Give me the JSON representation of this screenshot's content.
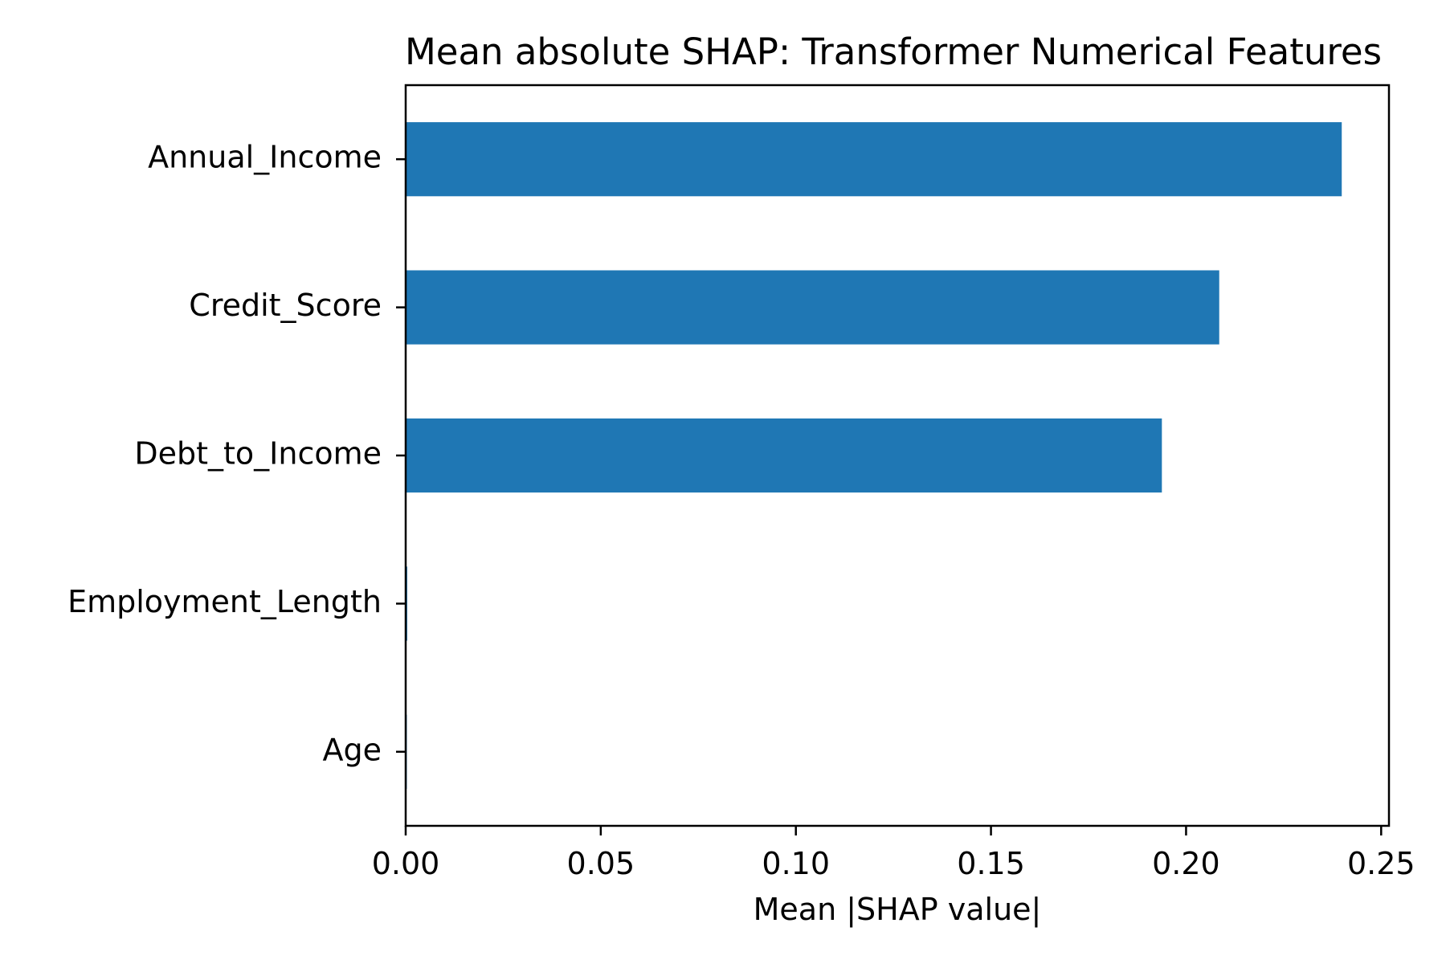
{
  "chart_data": {
    "type": "bar",
    "orientation": "horizontal",
    "title": "Mean absolute SHAP: Transformer Numerical Features",
    "xlabel": "Mean |SHAP value|",
    "ylabel": "",
    "categories": [
      "Annual_Income",
      "Credit_Score",
      "Debt_to_Income",
      "Employment_Length",
      "Age"
    ],
    "values": [
      0.2399,
      0.2085,
      0.1938,
      0.0004,
      0.0003
    ],
    "xlim": [
      0.0,
      0.252
    ],
    "xticks": [
      0.0,
      0.05,
      0.1,
      0.15,
      0.2,
      0.25
    ],
    "xtick_labels": [
      "0.00",
      "0.05",
      "0.10",
      "0.15",
      "0.20",
      "0.25"
    ],
    "bar_color": "#1f77b4",
    "grid": false,
    "legend": "none"
  }
}
